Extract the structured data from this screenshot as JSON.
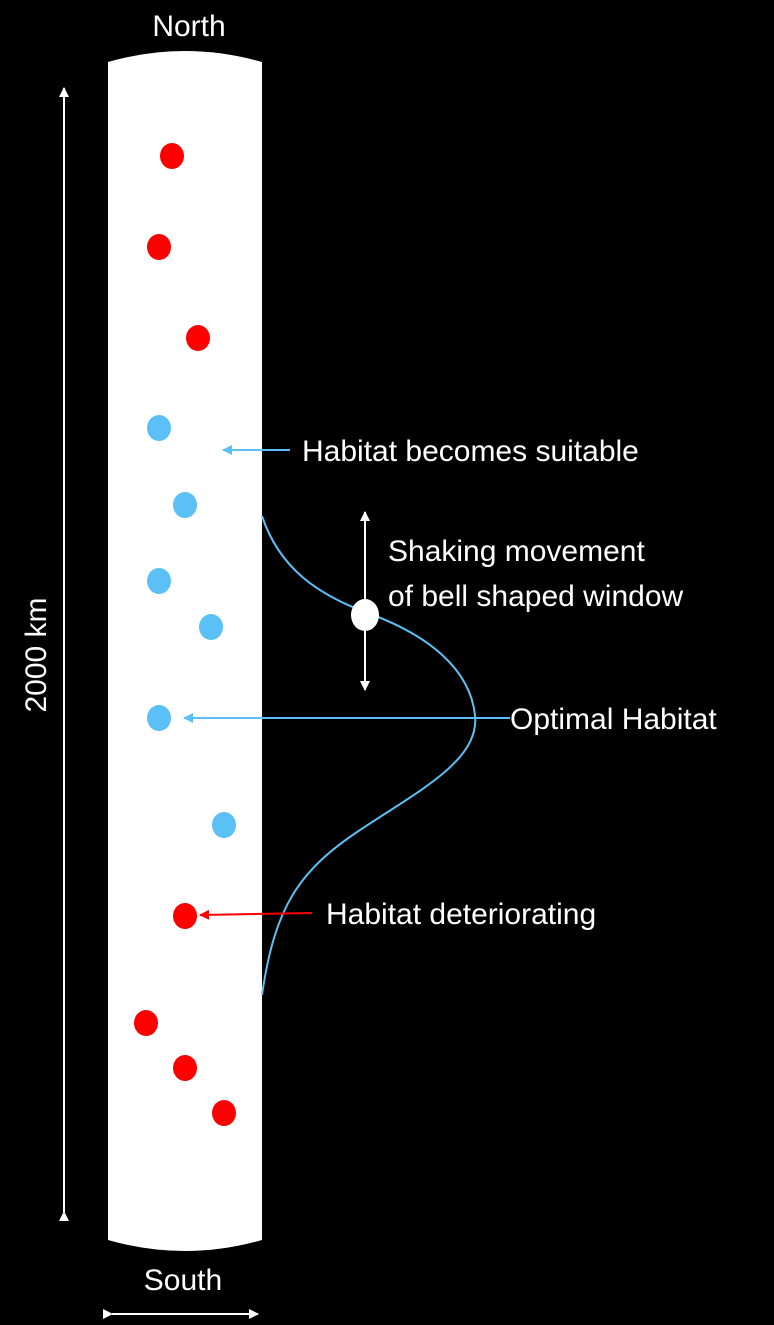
{
  "labels": {
    "north": "North",
    "south": "South",
    "distance": "2000 km",
    "habitat_suitable": "Habitat becomes suitable",
    "shaking_line1": "Shaking movement",
    "shaking_line2": "of bell shaped window",
    "optimal_habitat": "Optimal Habitat",
    "habitat_deteriorating": "Habitat deteriorating"
  },
  "colors": {
    "background": "#000000",
    "column": "#ffffff",
    "unsuitable_dot": "#ff0000",
    "suitable_dot": "#5bc0f5",
    "curve": "#5bc0f5",
    "marker": "#ffffff",
    "text": "#ffffff"
  }
}
